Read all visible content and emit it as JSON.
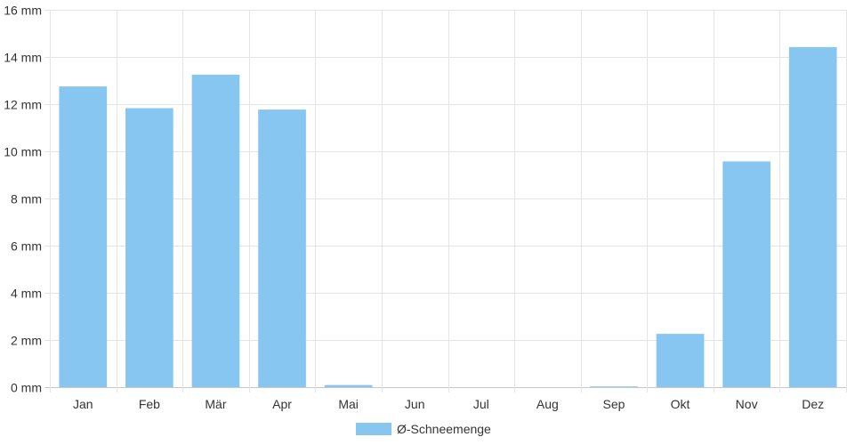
{
  "chart_data": {
    "type": "bar",
    "categories": [
      "Jan",
      "Feb",
      "Mär",
      "Apr",
      "Mai",
      "Jun",
      "Jul",
      "Aug",
      "Sep",
      "Okt",
      "Nov",
      "Dez"
    ],
    "series": [
      {
        "name": "Ø-Schneemenge",
        "values": [
          12.75,
          11.83,
          13.25,
          11.77,
          0.09,
          0,
          0,
          0,
          0.03,
          2.26,
          9.57,
          14.42
        ],
        "color": "#88c6f2"
      }
    ],
    "ylim": [
      0,
      16
    ],
    "y_ticks": [
      0,
      2,
      4,
      6,
      8,
      10,
      12,
      14,
      16
    ],
    "y_unit": "mm",
    "grid": true,
    "legend_position": "bottom-center"
  }
}
